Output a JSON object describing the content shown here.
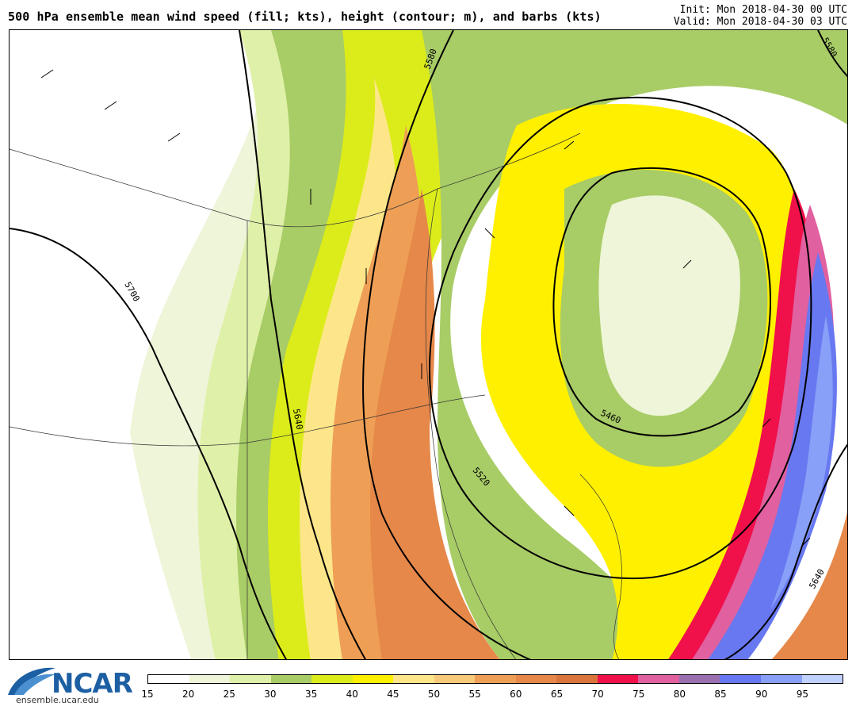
{
  "header": {
    "title": "500 hPa ensemble mean wind speed (fill; kts), height (contour; m), and barbs (kts)",
    "init": "Init: Mon 2018-04-30 00 UTC",
    "valid": "Valid: Mon 2018-04-30 03 UTC"
  },
  "logo": {
    "name": "NCAR",
    "url": "ensemble.ucar.edu"
  },
  "colorbar": {
    "ticks": [
      "15",
      "20",
      "25",
      "30",
      "35",
      "40",
      "45",
      "50",
      "55",
      "60",
      "65",
      "70",
      "75",
      "80",
      "85",
      "90",
      "95"
    ],
    "colors": [
      "#ffffff",
      "#eef5d8",
      "#dff0a8",
      "#a8cc66",
      "#dcec1a",
      "#fff000",
      "#fde68a",
      "#f7c97a",
      "#ee9f55",
      "#e6884a",
      "#d9743c",
      "#f0104a",
      "#e060a0",
      "#9a70b0",
      "#6878f0",
      "#88a0f8",
      "#c0d0ff"
    ]
  },
  "contours": {
    "labels": [
      "5580",
      "5580",
      "5700",
      "5640",
      "5460",
      "5520",
      "5640"
    ]
  }
}
